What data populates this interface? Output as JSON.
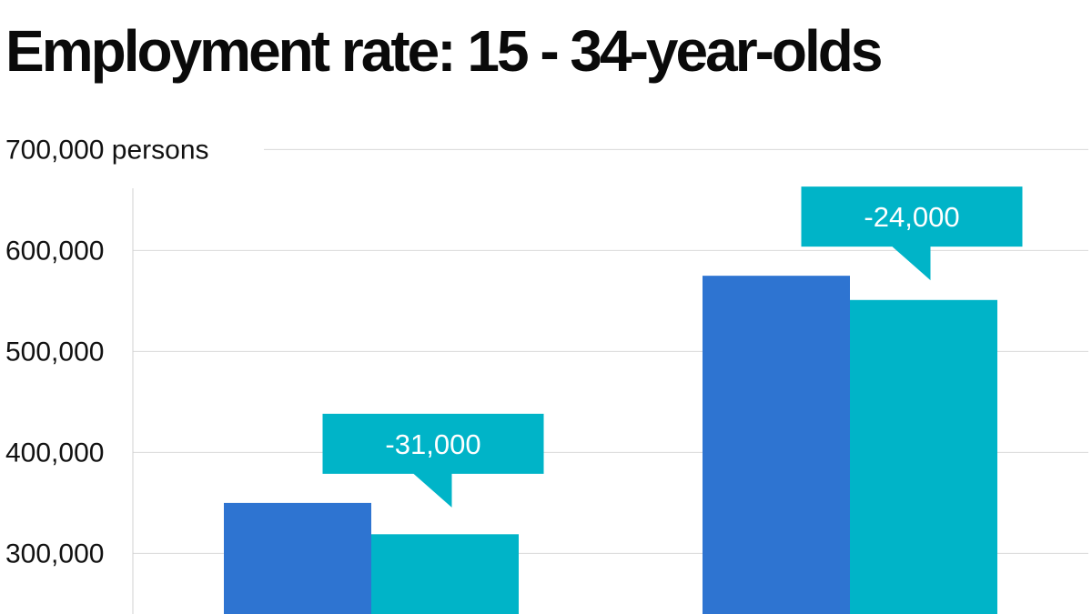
{
  "colors": {
    "series_1": "#2e74d1",
    "series_2": "#00b4c8",
    "callout": "#00b4c8",
    "grid": "#d9d9d9",
    "text": "#111111"
  },
  "chart_data": {
    "type": "bar",
    "title": "Employment rate: 15 - 34-year-olds",
    "xlabel": "",
    "ylabel": "",
    "y_unit": "persons",
    "ylim": [
      240000,
      700000
    ],
    "yticks": [
      300000,
      400000,
      500000,
      600000,
      700000
    ],
    "ytick_labels": [
      "300,000",
      "400,000",
      "500,000",
      "600,000",
      "700,000 persons"
    ],
    "grid": true,
    "legend": "none",
    "categories": [
      "",
      ""
    ],
    "series": [
      {
        "values": [
          350000,
          575000
        ]
      },
      {
        "values": [
          319000,
          551000
        ]
      }
    ],
    "annotations": [
      {
        "category_index": 0,
        "text": "-31,000"
      },
      {
        "category_index": 1,
        "text": "-24,000"
      }
    ]
  }
}
